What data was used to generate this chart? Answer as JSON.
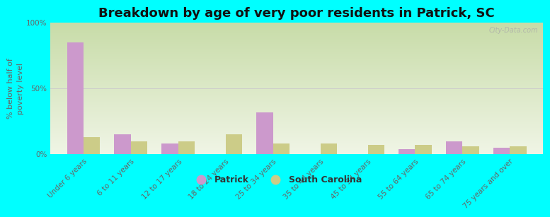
{
  "title": "Breakdown by age of very poor residents in Patrick, SC",
  "ylabel": "% below half of\npoverty level",
  "categories": [
    "Under 6 years",
    "6 to 11 years",
    "12 to 17 years",
    "18 to 24 years",
    "25 to 34 years",
    "35 to 44 years",
    "45 to 54 years",
    "55 to 64 years",
    "65 to 74 years",
    "75 years and over"
  ],
  "patrick_values": [
    85,
    15,
    8,
    0,
    32,
    0,
    0,
    4,
    10,
    5
  ],
  "sc_values": [
    13,
    10,
    10,
    15,
    8,
    8,
    7,
    7,
    6,
    6
  ],
  "patrick_color": "#cc99cc",
  "sc_color": "#cccc88",
  "background_color": "#00ffff",
  "ylim": [
    0,
    100
  ],
  "ytick_labels": [
    "0%",
    "50%",
    "100%"
  ],
  "bar_width": 0.35,
  "title_fontsize": 13,
  "axis_fontsize": 8,
  "tick_fontsize": 7.5,
  "legend_patrick": "Patrick",
  "legend_sc": "South Carolina",
  "watermark": "City-Data.com"
}
